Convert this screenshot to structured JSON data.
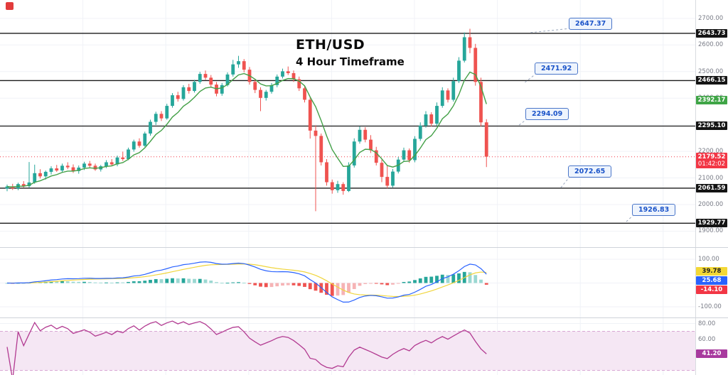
{
  "title": {
    "symbol": "ETH/USD",
    "timeframe": "4 Hour Timeframe"
  },
  "callouts": [
    "2647.37",
    "2471.92",
    "2294.09",
    "2072.65",
    "1926.83"
  ],
  "axis_badges": [
    {
      "text": "2643.73",
      "color": "black",
      "pane": "main",
      "value": 2643.73
    },
    {
      "text": "2466.15",
      "color": "black",
      "pane": "main",
      "value": 2466.15
    },
    {
      "text": "2392.17",
      "color": "green",
      "pane": "main",
      "value": 2392.17
    },
    {
      "text": "2295.10",
      "color": "black",
      "pane": "main",
      "value": 2295.1
    },
    {
      "text": "2179.52",
      "color": "red",
      "pane": "main",
      "value": 2179.52,
      "countdown": "01:42:02"
    },
    {
      "text": "2061.59",
      "color": "black",
      "pane": "main",
      "value": 2061.59
    },
    {
      "text": "1929.77",
      "color": "black",
      "pane": "main",
      "value": 1929.77
    },
    {
      "text": "39.78",
      "color": "yellow",
      "pane": "macd",
      "value": 39.78
    },
    {
      "text": "25.68",
      "color": "blue",
      "pane": "macd",
      "value": 25.68
    },
    {
      "text": "-14.10",
      "color": "red",
      "pane": "macd",
      "value": -14.1
    },
    {
      "text": "41.20",
      "color": "purple",
      "pane": "rsi",
      "value": 41.2
    }
  ],
  "chart_data": {
    "type": "candlestick",
    "title": "ETH/USD 4 Hour Timeframe",
    "price_axis_ticks": [
      "2700.00",
      "2600.00",
      "2500.00",
      "2400.00",
      "2300.00",
      "2200.00",
      "2100.00",
      "2000.00",
      "1900.00"
    ],
    "horizontal_levels": [
      2643.73,
      2466.15,
      2295.1,
      2061.59,
      1929.77
    ],
    "callout_levels": [
      2647.37,
      2471.92,
      2294.09,
      2072.65,
      1926.83
    ],
    "last_price": 2179.52,
    "countdown": "01:42:02",
    "ma_last_value": 2392.17,
    "candles": [
      [
        2060,
        2075,
        2050,
        2068
      ],
      [
        2068,
        2078,
        2055,
        2061
      ],
      [
        2061,
        2082,
        2054,
        2077
      ],
      [
        2077,
        2088,
        2064,
        2069
      ],
      [
        2069,
        2160,
        2064,
        2083
      ],
      [
        2083,
        2150,
        2078,
        2118
      ],
      [
        2118,
        2133,
        2098,
        2106
      ],
      [
        2106,
        2128,
        2094,
        2123
      ],
      [
        2123,
        2144,
        2113,
        2136
      ],
      [
        2136,
        2149,
        2123,
        2128
      ],
      [
        2128,
        2154,
        2121,
        2146
      ],
      [
        2146,
        2159,
        2133,
        2140
      ],
      [
        2140,
        2151,
        2119,
        2126
      ],
      [
        2126,
        2147,
        2116,
        2139
      ],
      [
        2139,
        2161,
        2130,
        2154
      ],
      [
        2154,
        2164,
        2139,
        2146
      ],
      [
        2146,
        2154,
        2127,
        2132
      ],
      [
        2132,
        2149,
        2124,
        2144
      ],
      [
        2144,
        2167,
        2137,
        2159
      ],
      [
        2159,
        2171,
        2147,
        2151
      ],
      [
        2151,
        2184,
        2144,
        2177
      ],
      [
        2177,
        2199,
        2164,
        2171
      ],
      [
        2171,
        2214,
        2167,
        2207
      ],
      [
        2207,
        2244,
        2199,
        2237
      ],
      [
        2237,
        2249,
        2214,
        2221
      ],
      [
        2221,
        2274,
        2217,
        2267
      ],
      [
        2267,
        2319,
        2259,
        2311
      ],
      [
        2311,
        2349,
        2299,
        2341
      ],
      [
        2341,
        2351,
        2314,
        2324
      ],
      [
        2324,
        2379,
        2319,
        2371
      ],
      [
        2371,
        2419,
        2364,
        2411
      ],
      [
        2411,
        2424,
        2387,
        2397
      ],
      [
        2397,
        2449,
        2391,
        2441
      ],
      [
        2441,
        2454,
        2417,
        2427
      ],
      [
        2427,
        2469,
        2421,
        2461
      ],
      [
        2461,
        2499,
        2454,
        2491
      ],
      [
        2491,
        2504,
        2469,
        2477
      ],
      [
        2477,
        2487,
        2439,
        2451
      ],
      [
        2451,
        2461,
        2407,
        2417
      ],
      [
        2417,
        2457,
        2409,
        2449
      ],
      [
        2449,
        2497,
        2444,
        2489
      ],
      [
        2489,
        2544,
        2481,
        2527
      ],
      [
        2527,
        2559,
        2514,
        2539
      ],
      [
        2539,
        2547,
        2497,
        2507
      ],
      [
        2507,
        2517,
        2451,
        2461
      ],
      [
        2461,
        2471,
        2419,
        2431
      ],
      [
        2431,
        2441,
        2351,
        2401
      ],
      [
        2401,
        2431,
        2391,
        2424
      ],
      [
        2424,
        2457,
        2417,
        2449
      ],
      [
        2449,
        2489,
        2441,
        2481
      ],
      [
        2481,
        2511,
        2474,
        2501
      ],
      [
        2501,
        2519,
        2487,
        2494
      ],
      [
        2494,
        2504,
        2461,
        2471
      ],
      [
        2471,
        2481,
        2427,
        2437
      ],
      [
        2437,
        2447,
        2384,
        2394
      ],
      [
        2394,
        2404,
        2248,
        2278
      ],
      [
        2278,
        2298,
        1975,
        2258
      ],
      [
        2258,
        2267,
        2147,
        2159
      ],
      [
        2159,
        2171,
        2071,
        2084
      ],
      [
        2084,
        2094,
        2041,
        2054
      ],
      [
        2054,
        2089,
        2044,
        2077
      ],
      [
        2077,
        2084,
        2037,
        2051
      ],
      [
        2051,
        2159,
        2047,
        2147
      ],
      [
        2147,
        2249,
        2139,
        2237
      ],
      [
        2237,
        2294,
        2229,
        2281
      ],
      [
        2281,
        2291,
        2234,
        2244
      ],
      [
        2244,
        2261,
        2194,
        2204
      ],
      [
        2204,
        2217,
        2147,
        2157
      ],
      [
        2157,
        2169,
        2084,
        2104
      ],
      [
        2104,
        2147,
        2061,
        2071
      ],
      [
        2071,
        2134,
        2064,
        2124
      ],
      [
        2124,
        2179,
        2117,
        2169
      ],
      [
        2169,
        2214,
        2161,
        2204
      ],
      [
        2204,
        2211,
        2157,
        2167
      ],
      [
        2167,
        2257,
        2159,
        2247
      ],
      [
        2247,
        2309,
        2239,
        2297
      ],
      [
        2297,
        2351,
        2289,
        2339
      ],
      [
        2339,
        2347,
        2294,
        2304
      ],
      [
        2304,
        2384,
        2297,
        2371
      ],
      [
        2371,
        2441,
        2364,
        2429
      ],
      [
        2429,
        2437,
        2384,
        2394
      ],
      [
        2394,
        2477,
        2387,
        2464
      ],
      [
        2464,
        2554,
        2457,
        2541
      ],
      [
        2541,
        2647,
        2534,
        2629
      ],
      [
        2629,
        2661,
        2569,
        2589
      ],
      [
        2589,
        2604,
        2447,
        2461
      ],
      [
        2461,
        2477,
        2294,
        2309
      ],
      [
        2309,
        2321,
        2141,
        2180
      ]
    ],
    "indicators": {
      "macd": {
        "macd_value": 25.68,
        "signal_value": 39.78,
        "histogram_value": -14.1,
        "axis_ticks": [
          "100.00",
          "-100.00"
        ]
      },
      "rsi": {
        "value": 41.2,
        "axis_ticks": [
          "80.00",
          "60.00"
        ],
        "band": [
          20,
          70
        ]
      }
    }
  },
  "colors": {
    "candle_up": "#26a69a",
    "candle_down": "#ef5350",
    "ma_line": "#43a047",
    "macd_line": "#2962ff",
    "signal_line": "#f0d53c",
    "rsi_line": "#b23a91",
    "hist_pos": "#26a69a",
    "hist_pos_weak": "#9bd8d2",
    "hist_neg": "#ef5350",
    "hist_neg_weak": "#f6b3b5",
    "level_line": "#1a1a1a",
    "callout_text": "#1a53c9",
    "last_price_line": "#f23645",
    "rsi_band_fill": "#f5e7f4",
    "rsi_band_edge": "#d8a7d4",
    "grid": "#f0f2f7"
  }
}
